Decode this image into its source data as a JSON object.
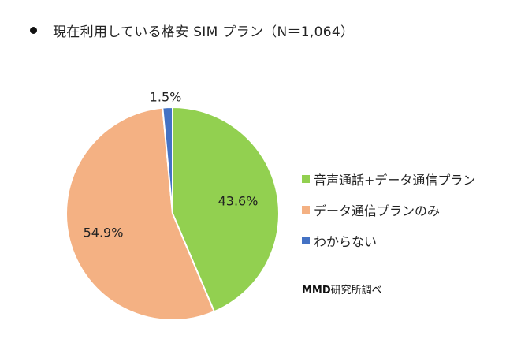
{
  "title": "現在利用している格安 SIM プラン（N＝1,064）",
  "source_note": "MMD研究所調べ",
  "chart_data": {
    "type": "pie",
    "title": "現在利用している格安 SIM プラン（N＝1,064）",
    "legend_position": "right",
    "slices": [
      {
        "name": "音声通話+データ通信プラン",
        "value": 43.6,
        "label": "43.6%",
        "color": "#92d050"
      },
      {
        "name": "データ通信プランのみ",
        "value": 54.9,
        "label": "54.9%",
        "color": "#f4b183"
      },
      {
        "name": "わからない",
        "value": 1.5,
        "label": "1.5%",
        "color": "#4472c4"
      }
    ]
  }
}
